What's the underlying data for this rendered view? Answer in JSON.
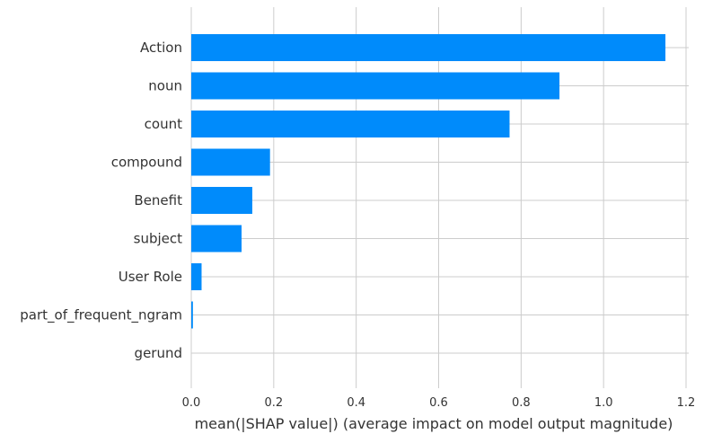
{
  "chart_data": {
    "type": "bar",
    "orientation": "horizontal",
    "categories": [
      "Action",
      "noun",
      "count",
      "compound",
      "Benefit",
      "subject",
      "User Role",
      "part_of_frequent_ngram",
      "gerund"
    ],
    "values": [
      1.15,
      0.893,
      0.772,
      0.191,
      0.148,
      0.122,
      0.025,
      0.004,
      0.0
    ],
    "xlabel": "mean(|SHAP value|) (average impact on model output magnitude)",
    "ylabel": "",
    "xlim": [
      0,
      1.2
    ],
    "xticks": [
      "0.0",
      "0.2",
      "0.4",
      "0.6",
      "0.8",
      "1.0",
      "1.2"
    ],
    "grid": true,
    "bar_color": "#008bfb",
    "grid_color": "#cccccc"
  }
}
